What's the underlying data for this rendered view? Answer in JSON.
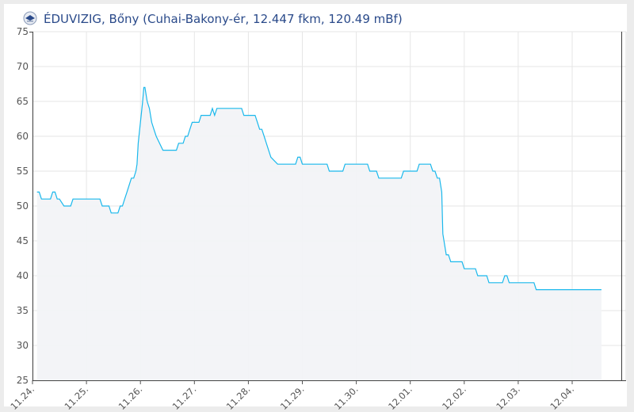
{
  "header": {
    "title": "ÉDUVIZIG, Bőny (Cuhai-Bakony-ér, 12.447 fkm, 120.49 mBf)",
    "logo_icon": "eduvizig-logo-icon"
  },
  "chart_data": {
    "type": "area",
    "title": "ÉDUVIZIG, Bőny (Cuhai-Bakony-ér, 12.447 fkm, 120.49 mBf)",
    "xlabel": "",
    "ylabel": "",
    "ylim": [
      25,
      75
    ],
    "yticks": [
      25,
      30,
      35,
      40,
      45,
      50,
      55,
      60,
      65,
      70,
      75
    ],
    "xticks": [
      "11.24.",
      "11.25.",
      "11.26.",
      "11.27.",
      "11.28.",
      "11.29.",
      "11.30.",
      "12.01.",
      "12.02.",
      "12.03.",
      "12.04."
    ],
    "grid": true,
    "colors": {
      "line": "#1ab8ec",
      "fill": "#f2f3f7",
      "grid": "#e6e6e6",
      "marker_line": "#333333"
    },
    "current_time_marker": "12-04 22:00",
    "series": [
      {
        "points": [
          [
            "11-24 02:00",
            52
          ],
          [
            "11-24 03:00",
            52
          ],
          [
            "11-24 04:00",
            51
          ],
          [
            "11-24 08:00",
            51
          ],
          [
            "11-24 09:00",
            52
          ],
          [
            "11-24 10:00",
            52
          ],
          [
            "11-24 11:00",
            51
          ],
          [
            "11-24 12:00",
            51
          ],
          [
            "11-24 14:00",
            50
          ],
          [
            "11-24 17:00",
            50
          ],
          [
            "11-24 18:00",
            51
          ],
          [
            "11-25 06:00",
            51
          ],
          [
            "11-25 07:00",
            50
          ],
          [
            "11-25 10:00",
            50
          ],
          [
            "11-25 11:00",
            49
          ],
          [
            "11-25 14:00",
            49
          ],
          [
            "11-25 15:00",
            50
          ],
          [
            "11-25 16:00",
            50
          ],
          [
            "11-25 17:00",
            51
          ],
          [
            "11-25 18:00",
            52
          ],
          [
            "11-25 19:00",
            53
          ],
          [
            "11-25 20:00",
            54
          ],
          [
            "11-25 21:00",
            54
          ],
          [
            "11-25 22:00",
            55
          ],
          [
            "11-25 22:30",
            56
          ],
          [
            "11-25 23:00",
            59
          ],
          [
            "11-26 01:00",
            65
          ],
          [
            "11-26 01:30",
            67
          ],
          [
            "11-26 02:00",
            67
          ],
          [
            "11-26 03:00",
            65
          ],
          [
            "11-26 04:00",
            64
          ],
          [
            "11-26 05:00",
            62
          ],
          [
            "11-26 06:00",
            61
          ],
          [
            "11-26 07:00",
            60
          ],
          [
            "11-26 10:00",
            58
          ],
          [
            "11-26 16:00",
            58
          ],
          [
            "11-26 17:00",
            59
          ],
          [
            "11-26 19:00",
            59
          ],
          [
            "11-26 20:00",
            60
          ],
          [
            "11-26 21:00",
            60
          ],
          [
            "11-26 22:00",
            61
          ],
          [
            "11-26 23:00",
            62
          ],
          [
            "11-27 02:00",
            62
          ],
          [
            "11-27 03:00",
            63
          ],
          [
            "11-27 07:00",
            63
          ],
          [
            "11-27 08:00",
            64
          ],
          [
            "11-27 09:00",
            63
          ],
          [
            "11-27 10:00",
            64
          ],
          [
            "11-27 21:00",
            64
          ],
          [
            "11-27 22:00",
            63
          ],
          [
            "11-28 03:00",
            63
          ],
          [
            "11-28 04:00",
            62
          ],
          [
            "11-28 05:00",
            61
          ],
          [
            "11-28 06:00",
            61
          ],
          [
            "11-28 07:00",
            60
          ],
          [
            "11-28 08:00",
            59
          ],
          [
            "11-28 10:00",
            57
          ],
          [
            "11-28 13:00",
            56
          ],
          [
            "11-28 21:00",
            56
          ],
          [
            "11-28 22:00",
            57
          ],
          [
            "11-28 23:00",
            57
          ],
          [
            "11-29 00:00",
            56
          ],
          [
            "11-29 11:00",
            56
          ],
          [
            "11-29 12:00",
            55
          ],
          [
            "11-29 18:00",
            55
          ],
          [
            "11-29 19:00",
            56
          ],
          [
            "11-30 05:00",
            56
          ],
          [
            "11-30 06:00",
            55
          ],
          [
            "11-30 09:00",
            55
          ],
          [
            "11-30 10:00",
            54
          ],
          [
            "11-30 20:00",
            54
          ],
          [
            "11-30 21:00",
            55
          ],
          [
            "12-01 03:00",
            55
          ],
          [
            "12-01 04:00",
            56
          ],
          [
            "12-01 09:00",
            56
          ],
          [
            "12-01 10:00",
            55
          ],
          [
            "12-01 11:00",
            55
          ],
          [
            "12-01 12:00",
            54
          ],
          [
            "12-01 13:00",
            54
          ],
          [
            "12-01 14:00",
            52
          ],
          [
            "12-01 14:30",
            46
          ],
          [
            "12-01 16:00",
            43
          ],
          [
            "12-01 17:00",
            43
          ],
          [
            "12-01 18:00",
            42
          ],
          [
            "12-01 23:00",
            42
          ],
          [
            "12-02 00:00",
            41
          ],
          [
            "12-02 05:00",
            41
          ],
          [
            "12-02 06:00",
            40
          ],
          [
            "12-02 10:00",
            40
          ],
          [
            "12-02 11:00",
            39
          ],
          [
            "12-02 17:00",
            39
          ],
          [
            "12-02 18:00",
            40
          ],
          [
            "12-02 19:00",
            40
          ],
          [
            "12-02 20:00",
            39
          ],
          [
            "12-03 07:00",
            39
          ],
          [
            "12-03 08:00",
            38
          ],
          [
            "12-04 13:00",
            38
          ]
        ]
      }
    ]
  }
}
